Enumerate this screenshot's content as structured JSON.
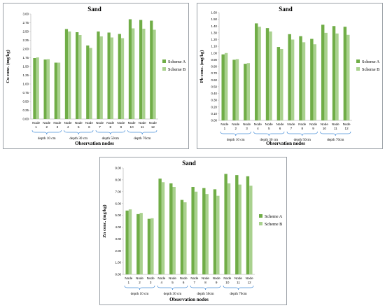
{
  "colors": {
    "scheme_a": "#70ad47",
    "scheme_b": "#a9d18e",
    "frame": "#9aa0a6",
    "grid_axis": "#bfbfbf",
    "text": "#000000",
    "brace": "#4a90d9"
  },
  "chart_data": [
    {
      "type": "bar",
      "title": "Sand",
      "xlabel": "Observation nodes",
      "ylabel": "Cu  conc. (mg/kg)",
      "ylim": [
        0,
        3.0
      ],
      "ytick_step": 0.25,
      "ytick_labels": [
        "0.00",
        "0.25",
        "0.50",
        "0.75",
        "1.00",
        "1.25",
        "1.50",
        "1.75",
        "2.00",
        "2.25",
        "2.50",
        "2.75",
        "3.00"
      ],
      "categories": [
        "1",
        "2",
        "3",
        "4",
        "5",
        "6",
        "7",
        "8",
        "9",
        "10",
        "11",
        "12"
      ],
      "category_prefix": "Node",
      "groups": [
        "depth 10 cm",
        "depth 30 cm",
        "depth 50cm",
        "depth 70cm"
      ],
      "legend_position": "right",
      "grid": false,
      "series": [
        {
          "name": "Scheme A",
          "values": [
            1.74,
            1.7,
            1.61,
            2.57,
            2.48,
            2.1,
            2.5,
            2.47,
            2.43,
            2.85,
            2.83,
            2.81
          ]
        },
        {
          "name": "Scheme B",
          "values": [
            1.76,
            1.71,
            1.61,
            2.5,
            2.4,
            2.03,
            2.36,
            2.33,
            2.31,
            2.59,
            2.58,
            2.55
          ]
        }
      ]
    },
    {
      "type": "bar",
      "title": "Sand",
      "xlabel": "Observation nodes",
      "ylabel": "Pb  conc. (mg/kg)",
      "ylim": [
        0,
        1.6
      ],
      "ytick_step": 0.1,
      "ytick_labels": [
        "0.00",
        "0.10",
        "0.20",
        "0.30",
        "0.40",
        "0.50",
        "0.60",
        "0.70",
        "0.80",
        "0.90",
        "1.00",
        "1.10",
        "1.20",
        "1.30",
        "1.40",
        "1.50",
        "1.60"
      ],
      "categories": [
        "1",
        "2",
        "3",
        "4",
        "5",
        "6",
        "7",
        "8",
        "9",
        "10",
        "11",
        "12"
      ],
      "category_prefix": "Node",
      "groups": [
        "depth 10 cm",
        "depth 30 cm",
        "depth 50cm",
        "depth 70cm"
      ],
      "legend_position": "right",
      "grid": false,
      "series": [
        {
          "name": "Scheme A",
          "values": [
            0.98,
            0.9,
            0.84,
            1.44,
            1.37,
            1.09,
            1.28,
            1.25,
            1.21,
            1.42,
            1.4,
            1.39
          ]
        },
        {
          "name": "Scheme B",
          "values": [
            1.0,
            0.91,
            0.85,
            1.39,
            1.32,
            1.06,
            1.2,
            1.16,
            1.13,
            1.3,
            1.29,
            1.27
          ]
        }
      ]
    },
    {
      "type": "bar",
      "title": "Sand",
      "xlabel": "Observation nodes",
      "ylabel": "Zn  conc. (mg/kg)",
      "ylim": [
        0,
        9.0
      ],
      "ytick_step": 1,
      "ytick_labels": [
        "0.00",
        "1.00",
        "2.00",
        "3.00",
        "4.00",
        "5.00",
        "6.00",
        "7.00",
        "8.00",
        "9.00"
      ],
      "categories": [
        "1",
        "2",
        "3",
        "4",
        "5",
        "6",
        "7",
        "8",
        "9",
        "10",
        "11",
        "12"
      ],
      "category_prefix": "Node",
      "groups": [
        "depth 10 cm",
        "depth 30 cm",
        "depth 50cm",
        "depth 70cm"
      ],
      "legend_position": "right",
      "grid": false,
      "series": [
        {
          "name": "Scheme A",
          "values": [
            5.4,
            5.1,
            4.7,
            8.1,
            7.7,
            6.3,
            7.4,
            7.3,
            7.2,
            8.5,
            8.4,
            8.3
          ]
        },
        {
          "name": "Scheme B",
          "values": [
            5.5,
            5.2,
            4.75,
            7.8,
            7.4,
            6.1,
            7.0,
            6.8,
            6.65,
            7.7,
            7.6,
            7.5
          ]
        }
      ]
    }
  ]
}
